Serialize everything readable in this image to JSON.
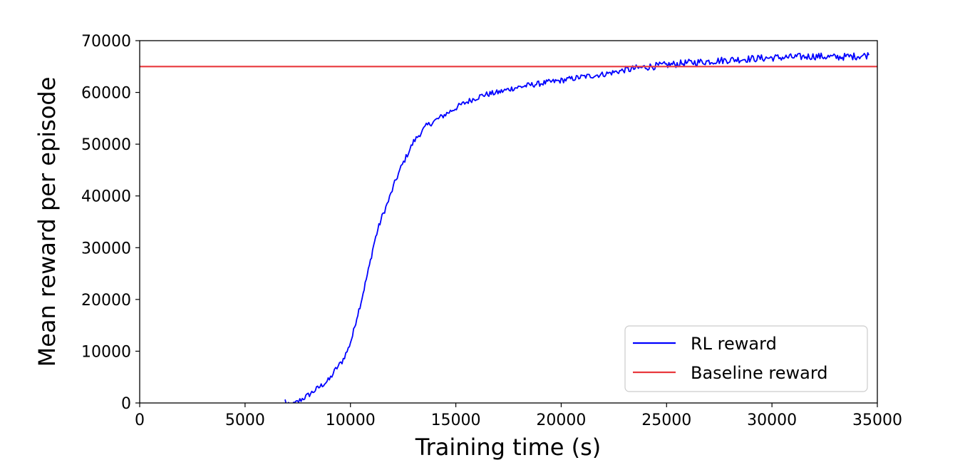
{
  "chart_data": {
    "type": "line",
    "xlabel": "Training time (s)",
    "ylabel": "Mean reward per episode",
    "xlim": [
      0,
      35000
    ],
    "ylim": [
      0,
      70000
    ],
    "xticks": [
      0,
      5000,
      10000,
      15000,
      20000,
      25000,
      30000,
      35000
    ],
    "yticks": [
      0,
      10000,
      20000,
      30000,
      40000,
      50000,
      60000,
      70000
    ],
    "grid": false,
    "legend_position": "bottom-right",
    "series": [
      {
        "name": "RL reward",
        "color": "#0000ff",
        "x": [
          6900,
          7000,
          7300,
          7600,
          8000,
          8500,
          9000,
          9300,
          9600,
          9900,
          10100,
          10300,
          10500,
          10700,
          10900,
          11100,
          11300,
          11500,
          11800,
          12100,
          12400,
          12700,
          13000,
          13300,
          13600,
          14000,
          14400,
          14800,
          15200,
          15700,
          16300,
          17000,
          17700,
          18500,
          19300,
          20000,
          21000,
          22000,
          23000,
          24000,
          25000,
          26000,
          27000,
          28000,
          29000,
          30000,
          31000,
          32000,
          33000,
          34000,
          34600
        ],
        "y": [
          500,
          -500,
          -300,
          500,
          1500,
          3000,
          4500,
          6500,
          8000,
          10500,
          13000,
          16500,
          19500,
          23000,
          26500,
          30500,
          33500,
          36000,
          39000,
          42500,
          45500,
          48000,
          50500,
          52000,
          53500,
          54500,
          55500,
          56500,
          57500,
          58500,
          59500,
          60000,
          60800,
          61400,
          61900,
          62300,
          63000,
          63500,
          64300,
          64900,
          65300,
          65700,
          66000,
          66300,
          66500,
          66700,
          66800,
          67000,
          66800,
          67000,
          67200
        ]
      },
      {
        "name": "Baseline reward",
        "color": "#e8383d",
        "x": [
          0,
          35000
        ],
        "y": [
          65000,
          65000
        ]
      }
    ]
  }
}
